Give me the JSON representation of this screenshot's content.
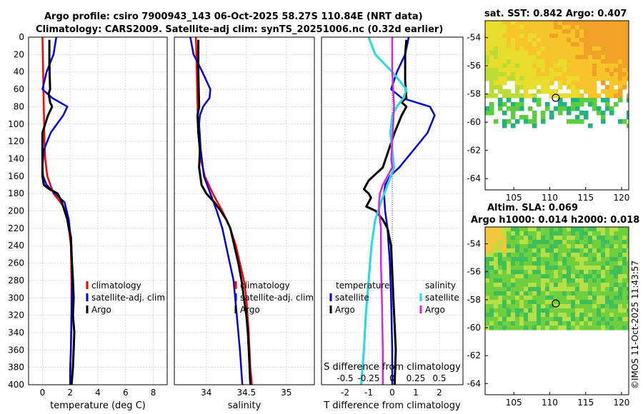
{
  "header": {
    "line1": "Argo profile: csiro 7900943_143 06-Oct-2025 58.27S 110.84E (NRT data)",
    "line2": "Climatology: CARS2009. Satellite-adj clim: synTS_20251006.nc (0.32d earlier)"
  },
  "side": {
    "sst_title": "sat. SST: 0.842 Argo: 0.407",
    "sla_title1": "Altim. SLA: 0.069",
    "sla_title2": "Argo h1000: 0.014 h2000: 0.018",
    "credit": "©IMOS 11-Oct-2025 11:43:57"
  },
  "colors": {
    "climatology": "#ff0000",
    "satellite": "#0000dd",
    "argo": "#000000",
    "sat_salinity": "#22dddd",
    "argo_salinity": "#dd22dd"
  },
  "chart_data": [
    {
      "type": "line",
      "id": "temperature",
      "xlabel": "temperature (deg C)",
      "ylabel": "",
      "xlim": [
        -1,
        9
      ],
      "ylim": [
        0,
        400
      ],
      "xticks": [
        0,
        2,
        4,
        6,
        8
      ],
      "xtick_labels": [
        "0",
        "2",
        "4",
        "6",
        "8"
      ],
      "yticks": [
        0,
        20,
        40,
        60,
        80,
        100,
        120,
        140,
        160,
        180,
        200,
        220,
        240,
        260,
        280,
        300,
        320,
        340,
        360,
        380,
        400
      ],
      "ytick_labels": [
        "0",
        "20",
        "40",
        "60",
        "80",
        "100",
        "120",
        "140",
        "160",
        "180",
        "200",
        "220",
        "240",
        "260",
        "280",
        "300",
        "320",
        "340",
        "360",
        "380",
        "400"
      ],
      "legend": [
        "climatology",
        "satellite-adj. clim",
        "Argo"
      ],
      "series": [
        {
          "name": "climatology",
          "color": "#ff0000",
          "x": [
            0.0,
            0.05,
            0.1,
            0.15,
            0.2,
            0.35,
            0.8,
            1.3,
            1.7,
            1.9,
            2.05,
            2.1,
            2.1,
            2.05,
            2.0
          ],
          "y": [
            0,
            40,
            80,
            120,
            140,
            160,
            180,
            190,
            200,
            220,
            240,
            280,
            320,
            360,
            400
          ]
        },
        {
          "name": "satellite-adj. clim",
          "color": "#0000dd",
          "x": [
            1.0,
            0.8,
            0.3,
            0.0,
            0.7,
            1.8,
            1.5,
            0.6,
            0.1,
            0.0,
            0.05,
            0.3,
            0.9,
            1.6,
            1.9,
            2.1,
            2.15,
            2.1,
            2.05,
            2.0,
            2.0
          ],
          "y": [
            0,
            20,
            40,
            60,
            70,
            80,
            90,
            110,
            130,
            150,
            160,
            170,
            180,
            190,
            210,
            240,
            280,
            320,
            360,
            380,
            400
          ]
        },
        {
          "name": "Argo",
          "color": "#000000",
          "x": [
            0.5,
            0.5,
            0.55,
            0.45,
            0.55,
            0.7,
            0.4,
            0.2,
            0.0,
            0.0,
            0.0,
            0.0,
            0.1,
            0.5,
            1.1,
            1.4,
            1.6,
            1.8,
            1.9,
            2.05,
            2.1,
            2.2,
            2.25,
            2.2,
            2.3,
            2.25,
            2.2,
            2.1
          ],
          "y": [
            3,
            30,
            60,
            65,
            75,
            80,
            90,
            100,
            110,
            130,
            150,
            160,
            170,
            175,
            180,
            190,
            200,
            210,
            220,
            230,
            250,
            280,
            300,
            320,
            340,
            360,
            380,
            400
          ]
        }
      ]
    },
    {
      "type": "line",
      "id": "salinity",
      "xlabel": "salinity",
      "ylabel": "",
      "xlim": [
        33.6,
        35.35
      ],
      "ylim": [
        0,
        400
      ],
      "xticks": [
        34,
        34.5,
        35
      ],
      "xtick_labels": [
        "34",
        "34.5",
        "35"
      ],
      "legend": [
        "climatology",
        "satellite-adj. clim",
        "Argo"
      ],
      "series": [
        {
          "name": "climatology",
          "color": "#ff0000",
          "x": [
            33.87,
            33.88,
            33.89,
            33.9,
            33.93,
            33.98,
            34.08,
            34.2,
            34.3,
            34.37,
            34.42,
            34.47,
            34.5,
            34.53,
            34.55,
            34.57
          ],
          "y": [
            0,
            40,
            80,
            110,
            140,
            160,
            180,
            200,
            220,
            240,
            260,
            280,
            300,
            340,
            380,
            400
          ]
        },
        {
          "name": "satellite-adj. clim",
          "color": "#0000dd",
          "x": [
            33.8,
            33.84,
            33.95,
            34.05,
            34.04,
            33.96,
            33.92,
            33.91,
            33.93,
            33.97,
            34.05,
            34.13,
            34.2,
            34.27,
            34.34,
            34.38,
            34.42,
            34.45
          ],
          "y": [
            0,
            20,
            40,
            60,
            70,
            80,
            90,
            100,
            130,
            160,
            180,
            200,
            220,
            250,
            280,
            320,
            360,
            400
          ]
        },
        {
          "name": "Argo",
          "color": "#000000",
          "x": [
            33.9,
            33.9,
            33.91,
            33.89,
            33.9,
            33.92,
            33.91,
            33.94,
            34.0,
            34.1,
            34.18,
            34.25,
            34.3,
            34.35,
            34.4,
            34.44,
            34.47,
            34.5,
            34.52,
            34.53,
            34.55
          ],
          "y": [
            3,
            40,
            80,
            90,
            110,
            130,
            150,
            170,
            180,
            190,
            200,
            210,
            220,
            240,
            260,
            280,
            300,
            320,
            340,
            360,
            400
          ]
        }
      ]
    },
    {
      "type": "line",
      "id": "difference",
      "xlabel": "T difference from climatology",
      "top_label": "S difference from climatology",
      "xlim": [
        -3,
        3
      ],
      "ylim": [
        0,
        400
      ],
      "xticks": [
        -2,
        -1,
        0,
        1,
        2
      ],
      "xtick_labels": [
        "-2",
        "-1",
        "0",
        "1",
        "2"
      ],
      "sticks": [
        -0.5,
        -0.25,
        0,
        0.25,
        0.5
      ],
      "stick_labels": [
        "-0.5",
        "-0.25",
        "0",
        "0.25",
        "0.5"
      ],
      "legend_temperature_header": "temperature",
      "legend_salinity_header": "salinity",
      "legend": [
        "satellite",
        "Argo",
        "satellite",
        "Argo"
      ],
      "series": [
        {
          "name": "temperature satellite",
          "color": "#0000dd",
          "x": [
            0.7,
            0.55,
            0.2,
            -0.05,
            0.4,
            1.6,
            1.8,
            1.5,
            0.9,
            0.3,
            -0.1,
            -0.3,
            -0.35,
            -0.3,
            -0.2,
            -0.1,
            -0.05,
            0.0,
            0.0
          ],
          "y": [
            0,
            20,
            40,
            60,
            70,
            80,
            90,
            110,
            130,
            150,
            160,
            170,
            180,
            200,
            220,
            260,
            300,
            360,
            400
          ]
        },
        {
          "name": "temperature Argo",
          "color": "#000000",
          "x": [
            0.6,
            0.55,
            0.55,
            0.6,
            0.4,
            0.6,
            0.4,
            0.1,
            -0.15,
            -0.4,
            -0.8,
            -1.0,
            -1.2,
            -1.0,
            -0.9,
            -1.1,
            -0.7,
            -0.4,
            -0.2,
            -0.05,
            0.0,
            0.05,
            0.1,
            0.15,
            0.1
          ],
          "y": [
            3,
            20,
            50,
            70,
            75,
            80,
            90,
            110,
            130,
            150,
            160,
            165,
            175,
            180,
            185,
            195,
            200,
            210,
            220,
            240,
            270,
            300,
            330,
            360,
            400
          ]
        },
        {
          "name": "salinity satellite",
          "color": "#22dddd",
          "x": [
            -0.25,
            -0.18,
            0.0,
            0.15,
            0.12,
            0.05,
            0.0,
            -0.02,
            0.0,
            0.02,
            -0.05,
            -0.12,
            -0.18,
            -0.22,
            -0.25,
            -0.28,
            -0.3,
            -0.33
          ],
          "y": [
            0,
            20,
            40,
            60,
            70,
            80,
            90,
            110,
            130,
            150,
            170,
            190,
            210,
            240,
            280,
            320,
            360,
            400
          ]
        },
        {
          "name": "salinity Argo",
          "color": "#dd22dd",
          "x": [
            0.0,
            0.0,
            0.02,
            0.01,
            0.0,
            -0.01,
            0.0,
            -0.05,
            -0.1,
            -0.13,
            -0.14,
            -0.14,
            -0.12,
            -0.12,
            -0.11,
            -0.1,
            -0.1
          ],
          "y": [
            0,
            40,
            80,
            100,
            120,
            140,
            150,
            160,
            170,
            180,
            190,
            200,
            220,
            260,
            300,
            360,
            400
          ]
        }
      ]
    },
    {
      "type": "heatmap",
      "id": "sst_map",
      "title": "sat. SST: 0.842 Argo: 0.407",
      "xticks": [
        105,
        110,
        115,
        120
      ],
      "xtick_labels": [
        "105",
        "110",
        "115",
        "120"
      ],
      "yticks": [
        -54,
        -56,
        -58,
        -60,
        -62,
        -64
      ],
      "ytick_labels": [
        "-54",
        "-56",
        "-58",
        "-60",
        "-62",
        "-64"
      ],
      "xlim": [
        101,
        121
      ],
      "ylim": [
        -64.8,
        -52.8
      ],
      "argo_position": [
        110.84,
        -58.27
      ],
      "data_extent_lat": -60.3
    },
    {
      "type": "heatmap",
      "id": "sla_map",
      "title": "Altim. SLA: 0.069",
      "subtitle": "Argo h1000: 0.014 h2000: 0.018",
      "xticks": [
        105,
        110,
        115,
        120
      ],
      "xtick_labels": [
        "105",
        "110",
        "115",
        "120"
      ],
      "yticks": [
        -54,
        -56,
        -58,
        -60,
        -62,
        -64
      ],
      "ytick_labels": [
        "-54",
        "-56",
        "-58",
        "-60",
        "-62",
        "-64"
      ],
      "xlim": [
        101,
        121
      ],
      "ylim": [
        -64.8,
        -52.8
      ],
      "argo_position": [
        110.84,
        -58.27
      ],
      "data_extent_lat": -60.0
    }
  ]
}
